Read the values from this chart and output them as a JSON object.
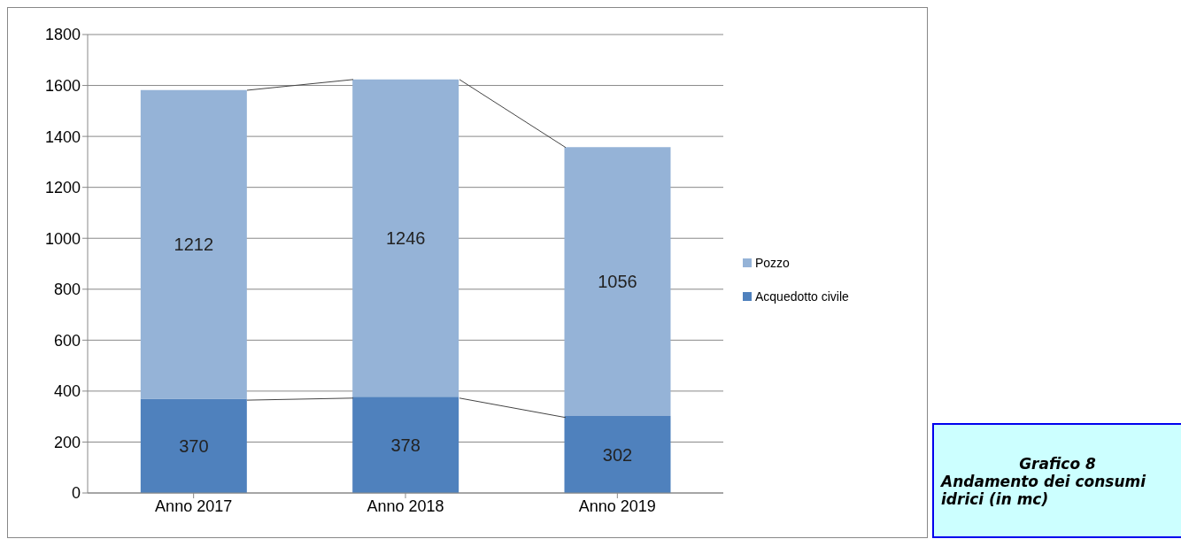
{
  "chart_data": {
    "type": "bar",
    "stacked": true,
    "title": "Grafico 8",
    "subtitle": "Andamento dei consumi idrici (in mc)",
    "categories": [
      "Anno 2017",
      "Anno 2018",
      "Anno 2019"
    ],
    "series": [
      {
        "name": "Acquedotto civile",
        "color": "#4f81bd",
        "values": [
          370,
          378,
          302
        ]
      },
      {
        "name": "Pozzo",
        "color": "#95b3d7",
        "values": [
          1212,
          1246,
          1056
        ]
      }
    ],
    "ylim": [
      0,
      1800
    ],
    "yticks": [
      0,
      200,
      400,
      600,
      800,
      1000,
      1200,
      1400,
      1600,
      1800
    ],
    "grid": "y",
    "legend": "right",
    "data_labels": true
  }
}
